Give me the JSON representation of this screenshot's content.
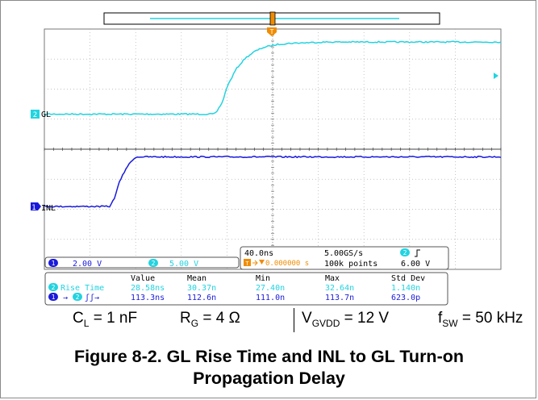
{
  "colors": {
    "ch1": "#1a1adc",
    "ch2": "#22d3e0",
    "trigger": "#f08c00",
    "grid": "#9a9a9a",
    "text": "#000000"
  },
  "markers": {
    "ch2_label": "GL",
    "ch2_num": "2",
    "ch1_label": "INL",
    "ch1_num": "1",
    "trigger_letter": "T"
  },
  "status_box": {
    "timebase": "40.0ns",
    "sample_rate": "5.00GS/s",
    "trigger_channel": "2",
    "trigger_position": "0.000000 s",
    "record_length": "100k points",
    "trigger_level": "6.00 V"
  },
  "channel_bar": {
    "ch1": {
      "num": "1",
      "scale": "2.00 V"
    },
    "ch2": {
      "num": "2",
      "scale": "5.00 V"
    }
  },
  "measurements": {
    "headers": [
      "Value",
      "Mean",
      "Min",
      "Max",
      "Std Dev"
    ],
    "rows": [
      {
        "channel": "2",
        "label": "Rise Time",
        "values": [
          "28.58ns",
          "30.37n",
          "27.40n",
          "32.64n",
          "1.140n"
        ]
      },
      {
        "from": "1",
        "to": "2",
        "label": "ʃʃ→",
        "values": [
          "113.3ns",
          "112.6n",
          "111.0n",
          "113.7n",
          "623.0p"
        ]
      }
    ]
  },
  "conditions": {
    "cl_sym": "C",
    "cl_sub": "L",
    "cl_val": " = 1 nF",
    "rg_sym": "R",
    "rg_sub": "G",
    "rg_val": " = 4 Ω",
    "vg_sym": "V",
    "vg_sub": "GVDD",
    "vg_val": " = 12 V",
    "fs_sym": "f",
    "fs_sub": "SW",
    "fs_val": " = 50 kHz"
  },
  "caption": {
    "line1": "Figure 8-2. GL Rise Time and INL to GL Turn-on",
    "line2": "Propagation Delay"
  },
  "chart_data": {
    "type": "line",
    "title": "",
    "xlabel": "",
    "ylabel": "",
    "x_unit": "ns",
    "x_per_div_ns": 40,
    "xlim": [
      -200,
      300
    ],
    "series": [
      {
        "name": "GL",
        "channel": 2,
        "volts_per_div": 5.0,
        "color": "#22d3e0",
        "x": [
          -200,
          -15,
          -12,
          -5,
          0,
          10,
          20,
          30,
          40,
          55,
          70,
          90,
          110,
          130,
          160,
          200,
          300
        ],
        "y": [
          0,
          0,
          0.2,
          2.0,
          4.5,
          7.5,
          9.3,
          10.4,
          11.1,
          11.6,
          11.8,
          11.9,
          12.0,
          12.0,
          12.0,
          12.0,
          12.0
        ]
      },
      {
        "name": "INL",
        "channel": 1,
        "volts_per_div": 2.0,
        "color": "#1a1adc",
        "x": [
          -200,
          -128,
          -123,
          -118,
          -110,
          -102,
          -98,
          -90,
          300
        ],
        "y": [
          0,
          0,
          0.6,
          1.6,
          2.6,
          3.2,
          3.3,
          3.3,
          3.3
        ]
      }
    ]
  }
}
